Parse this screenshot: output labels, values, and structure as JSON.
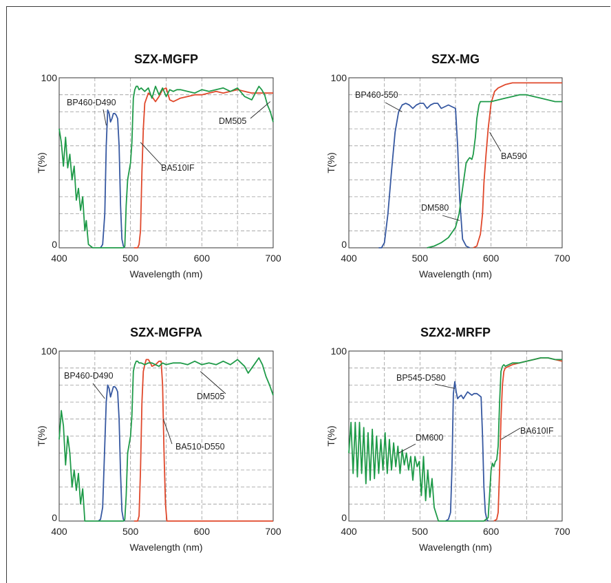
{
  "chart_data": [
    {
      "type": "line",
      "title": "SZX-MGFP",
      "xlabel": "Wavelength (nm)",
      "ylabel": "T(%)",
      "xlim": [
        400,
        700
      ],
      "ylim": [
        0,
        100
      ],
      "xticks": [
        400,
        500,
        600,
        700
      ],
      "yticks": [
        0,
        100
      ],
      "grid": true,
      "series": [
        {
          "name": "BP460-D490",
          "color": "#3557a0",
          "x": [
            458,
            461,
            464,
            466,
            468,
            470,
            472,
            474,
            476,
            478,
            480,
            482,
            484,
            486,
            488,
            490,
            492
          ],
          "y": [
            0,
            2,
            20,
            60,
            81,
            79,
            74,
            76,
            79,
            79,
            78,
            76,
            60,
            25,
            5,
            1,
            0
          ]
        },
        {
          "name": "BA510IF",
          "color": "#e0472a",
          "x": [
            505,
            510,
            512,
            514,
            516,
            518,
            520,
            525,
            530,
            535,
            540,
            545,
            550,
            555,
            560,
            570,
            580,
            590,
            600,
            610,
            620,
            630,
            640,
            650,
            660,
            670,
            680,
            690,
            700
          ],
          "y": [
            0,
            0,
            2,
            10,
            45,
            70,
            85,
            91,
            89,
            86,
            89,
            93,
            94,
            87,
            86,
            88,
            89,
            90,
            90,
            91,
            92,
            91,
            92,
            93,
            92,
            91,
            91,
            91,
            91
          ]
        },
        {
          "name": "DM505",
          "color": "#1e9a48",
          "x": [
            400,
            403,
            406,
            409,
            412,
            415,
            418,
            421,
            424,
            427,
            430,
            433,
            436,
            438,
            441,
            444,
            447,
            450,
            455,
            460,
            470,
            480,
            484,
            488,
            490,
            492,
            494,
            496,
            498,
            500,
            502,
            504,
            506,
            508,
            510,
            512,
            515,
            520,
            525,
            530,
            535,
            540,
            545,
            550,
            555,
            560,
            565,
            570,
            580,
            590,
            600,
            610,
            620,
            630,
            640,
            650,
            660,
            670,
            680,
            684,
            688,
            692,
            696,
            700
          ],
          "y": [
            70,
            62,
            48,
            65,
            47,
            55,
            40,
            48,
            28,
            35,
            22,
            30,
            10,
            16,
            2,
            1,
            0,
            0,
            0,
            0,
            0,
            0,
            0,
            0,
            0,
            1,
            25,
            40,
            45,
            50,
            62,
            88,
            93,
            95,
            95,
            93,
            94,
            92,
            94,
            88,
            95,
            90,
            94,
            89,
            93,
            92,
            93,
            93,
            92,
            91,
            93,
            92,
            93,
            94,
            92,
            94,
            89,
            87,
            95,
            93,
            90,
            84,
            80,
            74
          ]
        }
      ],
      "annotations": [
        {
          "text": "BP460-D490",
          "series": "BP460-D490"
        },
        {
          "text": "BA510IF",
          "series": "BA510IF"
        },
        {
          "text": "DM505",
          "series": "DM505"
        }
      ]
    },
    {
      "type": "line",
      "title": "SZX-MG",
      "xlabel": "Wavelength (nm)",
      "ylabel": "T(%)",
      "xlim": [
        400,
        700
      ],
      "ylim": [
        0,
        100
      ],
      "xticks": [
        400,
        500,
        600,
        700
      ],
      "yticks": [
        0,
        100
      ],
      "grid": true,
      "series": [
        {
          "name": "BP460-550",
          "color": "#3557a0",
          "x": [
            442,
            446,
            450,
            455,
            460,
            465,
            470,
            475,
            480,
            485,
            490,
            495,
            500,
            505,
            510,
            515,
            520,
            525,
            530,
            535,
            540,
            545,
            550,
            553,
            556,
            560,
            565,
            570
          ],
          "y": [
            0,
            0,
            3,
            20,
            45,
            68,
            80,
            84,
            85,
            84,
            82,
            84,
            85,
            85,
            82,
            84,
            85,
            85,
            82,
            83,
            84,
            83,
            82,
            60,
            28,
            5,
            1,
            0
          ]
        },
        {
          "name": "BA590",
          "color": "#e0472a",
          "x": [
            575,
            580,
            585,
            588,
            590,
            593,
            596,
            600,
            605,
            610,
            620,
            630,
            640,
            650,
            660,
            680,
            700
          ],
          "y": [
            0,
            1,
            8,
            20,
            38,
            55,
            70,
            85,
            92,
            94,
            96,
            97,
            97,
            97,
            97,
            97,
            97
          ]
        },
        {
          "name": "DM580",
          "color": "#1e9a48",
          "x": [
            510,
            520,
            530,
            540,
            550,
            555,
            560,
            565,
            568,
            570,
            573,
            575,
            578,
            580,
            583,
            585,
            588,
            590,
            595,
            600,
            610,
            620,
            630,
            640,
            650,
            660,
            670,
            680,
            690,
            700
          ],
          "y": [
            0,
            1,
            3,
            6,
            12,
            20,
            35,
            50,
            52,
            53,
            52,
            55,
            65,
            76,
            84,
            86,
            86,
            86,
            86,
            86,
            87,
            88,
            89,
            90,
            90,
            89,
            88,
            87,
            86,
            86
          ]
        }
      ],
      "annotations": [
        {
          "text": "BP460-550",
          "series": "BP460-550"
        },
        {
          "text": "BA590",
          "series": "BA590"
        },
        {
          "text": "DM580",
          "series": "DM580"
        }
      ]
    },
    {
      "type": "line",
      "title": "SZX-MGFPA",
      "xlabel": "Wavelength (nm)",
      "ylabel": "T(%)",
      "xlim": [
        400,
        700
      ],
      "ylim": [
        0,
        100
      ],
      "xticks": [
        400,
        500,
        600,
        700
      ],
      "yticks": [
        0,
        100
      ],
      "grid": true,
      "series": [
        {
          "name": "BP460-D490",
          "color": "#3557a0",
          "x": [
            455,
            458,
            461,
            464,
            466,
            468,
            470,
            472,
            474,
            476,
            478,
            480,
            482,
            484,
            486,
            488,
            490,
            492
          ],
          "y": [
            0,
            1,
            8,
            45,
            70,
            80,
            78,
            73,
            76,
            79,
            79,
            78,
            76,
            60,
            28,
            6,
            1,
            0
          ]
        },
        {
          "name": "BA510-D550",
          "color": "#e0472a",
          "x": [
            505,
            510,
            512,
            514,
            516,
            518,
            520,
            522,
            525,
            528,
            530,
            535,
            540,
            543,
            545,
            547,
            549,
            551,
            555,
            600,
            650,
            700
          ],
          "y": [
            0,
            0,
            3,
            30,
            70,
            88,
            92,
            95,
            95,
            93,
            91,
            92,
            94,
            94,
            80,
            40,
            10,
            0,
            0,
            0,
            0,
            0
          ]
        },
        {
          "name": "DM505",
          "color": "#1e9a48",
          "x": [
            400,
            403,
            406,
            409,
            412,
            415,
            418,
            421,
            424,
            427,
            430,
            433,
            436,
            438,
            441,
            444,
            447,
            450,
            460,
            470,
            480,
            485,
            490,
            492,
            494,
            496,
            498,
            500,
            502,
            504,
            506,
            508,
            510,
            512,
            515,
            520,
            525,
            530,
            535,
            540,
            545,
            550,
            560,
            570,
            580,
            590,
            600,
            610,
            620,
            630,
            640,
            650,
            660,
            665,
            670,
            675,
            680,
            685,
            690,
            695,
            700
          ],
          "y": [
            48,
            65,
            56,
            33,
            50,
            40,
            20,
            30,
            18,
            28,
            10,
            19,
            0,
            0,
            0,
            0,
            0,
            0,
            0,
            0,
            0,
            0,
            0,
            1,
            15,
            40,
            45,
            50,
            62,
            88,
            92,
            94,
            94,
            93,
            93,
            92,
            93,
            93,
            92,
            91,
            93,
            92,
            93,
            93,
            92,
            94,
            92,
            93,
            92,
            94,
            92,
            95,
            91,
            87,
            90,
            93,
            96,
            92,
            85,
            80,
            74
          ]
        }
      ],
      "annotations": [
        {
          "text": "BP460-D490",
          "series": "BP460-D490"
        },
        {
          "text": "BA510-D550",
          "series": "BA510-D550"
        },
        {
          "text": "DM505",
          "series": "DM505"
        }
      ]
    },
    {
      "type": "line",
      "title": "SZX2-MRFP",
      "xlabel": "Wavelength (nm)",
      "ylabel": "T(%)",
      "xlim": [
        400,
        700
      ],
      "ylim": [
        0,
        100
      ],
      "xticks": [
        400,
        500,
        600,
        700
      ],
      "yticks": [
        0,
        100
      ],
      "grid": true,
      "series": [
        {
          "name": "BP545-D580",
          "color": "#3557a0",
          "x": [
            536,
            540,
            543,
            545,
            547,
            549,
            551,
            553,
            555,
            558,
            561,
            564,
            567,
            570,
            573,
            576,
            580,
            583,
            586,
            588,
            590,
            592,
            594,
            596
          ],
          "y": [
            0,
            1,
            5,
            30,
            75,
            82,
            76,
            72,
            73,
            74,
            72,
            74,
            76,
            75,
            74,
            75,
            75,
            74,
            73,
            50,
            20,
            5,
            1,
            0
          ]
        },
        {
          "name": "BA610IF",
          "color": "#e0472a",
          "x": [
            604,
            608,
            610,
            612,
            614,
            616,
            618,
            620,
            625,
            630,
            640,
            650,
            660,
            670,
            680,
            690,
            700
          ],
          "y": [
            0,
            1,
            5,
            30,
            60,
            80,
            88,
            90,
            91,
            92,
            93,
            94,
            95,
            96,
            96,
            95,
            94
          ]
        },
        {
          "name": "DM600",
          "color": "#1e9a48",
          "x": [
            400,
            403,
            406,
            409,
            412,
            415,
            418,
            421,
            424,
            427,
            430,
            433,
            436,
            439,
            442,
            445,
            448,
            451,
            454,
            457,
            460,
            463,
            466,
            469,
            472,
            475,
            478,
            481,
            484,
            487,
            490,
            493,
            496,
            499,
            502,
            505,
            508,
            511,
            514,
            517,
            520,
            523,
            526,
            530,
            540,
            550,
            560,
            570,
            580,
            590,
            596,
            600,
            602,
            604,
            606,
            608,
            610,
            612,
            614,
            616,
            618,
            620,
            630,
            640,
            650,
            660,
            670,
            680,
            690,
            700
          ],
          "y": [
            40,
            58,
            28,
            58,
            26,
            58,
            28,
            55,
            22,
            52,
            24,
            54,
            25,
            50,
            28,
            48,
            30,
            52,
            28,
            48,
            30,
            46,
            32,
            44,
            28,
            42,
            33,
            40,
            30,
            38,
            24,
            38,
            32,
            35,
            15,
            38,
            12,
            30,
            14,
            25,
            8,
            4,
            0,
            0,
            0,
            0,
            0,
            0,
            0,
            0,
            2,
            30,
            34,
            32,
            35,
            36,
            44,
            70,
            88,
            91,
            92,
            91,
            93,
            93,
            94,
            95,
            96,
            96,
            95,
            95
          ]
        }
      ],
      "annotations": [
        {
          "text": "BP545-D580",
          "series": "BP545-D580"
        },
        {
          "text": "BA610IF",
          "series": "BA610IF"
        },
        {
          "text": "DM600",
          "series": "DM600"
        }
      ]
    }
  ]
}
